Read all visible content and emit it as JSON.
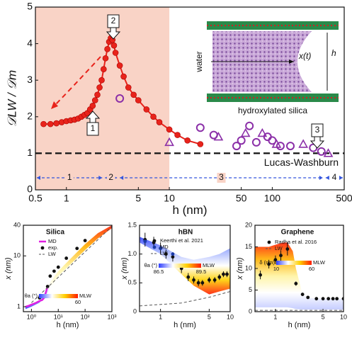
{
  "chart_data": [
    {
      "type": "line",
      "x_label": "h (nm)",
      "y_label": "𝒟LW / 𝒟m",
      "xlog": true,
      "xlim": [
        0.5,
        500
      ],
      "xticks": [
        0.5,
        1,
        5,
        10,
        50,
        100,
        500
      ],
      "ylim": [
        0,
        5
      ],
      "yticks": [
        0,
        1,
        2,
        3,
        4,
        5
      ],
      "shaded": [
        0.5,
        10
      ],
      "shade_color": "#f9d3c6",
      "reference": {
        "value": 1,
        "label": "Lucas-Washburn"
      },
      "series": [
        {
          "style": "line-markers",
          "color": "#e8231b",
          "x": [
            0.6,
            0.7,
            0.8,
            0.9,
            1.0,
            1.1,
            1.2,
            1.3,
            1.4,
            1.5,
            1.6,
            1.7,
            1.8,
            1.9,
            2.0,
            2.1,
            2.2,
            2.3,
            2.4,
            2.5,
            2.6,
            2.7,
            2.8,
            2.9,
            3.0,
            3.3,
            3.6,
            4,
            4.5,
            5,
            6,
            7,
            8,
            10,
            12,
            15,
            20
          ],
          "values": [
            1.8,
            1.8,
            1.82,
            1.85,
            1.88,
            1.9,
            1.92,
            1.95,
            2.0,
            2.05,
            2.1,
            2.2,
            2.3,
            2.45,
            2.6,
            2.8,
            3.0,
            3.3,
            3.6,
            3.85,
            4.05,
            4.15,
            4.1,
            3.95,
            3.75,
            3.4,
            3.1,
            2.8,
            2.6,
            2.45,
            2.2,
            2.0,
            1.85,
            1.65,
            1.5,
            1.35,
            1.25
          ]
        },
        {
          "style": "scatter",
          "color": "#8b2fa8",
          "x": [
            3.3,
            10,
            20,
            27,
            30,
            45,
            50,
            55,
            60,
            70,
            80,
            90,
            100,
            110,
            120,
            150,
            200,
            250,
            300,
            350
          ],
          "values": [
            2.5,
            1.3,
            1.7,
            1.5,
            1.45,
            1.2,
            1.35,
            1.55,
            1.75,
            1.3,
            1.55,
            1.45,
            1.35,
            1.25,
            1.2,
            1.2,
            1.25,
            1.15,
            1.05,
            1.0
          ]
        }
      ],
      "regions": [
        {
          "label": "1",
          "range": [
            0.5,
            2.3
          ]
        },
        {
          "label": "2",
          "range": [
            2.3,
            3.2
          ]
        },
        {
          "label": "3",
          "range": [
            3.2,
            320
          ]
        },
        {
          "label": "4",
          "range": [
            320,
            500
          ]
        }
      ],
      "region_color": "#3355dd",
      "annotations": [
        "1",
        "2",
        "3"
      ],
      "inset": {
        "left": "water",
        "arrow": "x(t)",
        "height": "h",
        "bottom": "hydroxylated silica"
      }
    },
    {
      "type": "line",
      "title": "Silica",
      "x_label": "h (nm)",
      "y_label": "x (nm)",
      "xlog": true,
      "ylog": true,
      "xlim": [
        0.5,
        1000
      ],
      "xticks": [
        {
          "value": 1,
          "label": "10⁰"
        },
        {
          "value": 10,
          "label": "10¹"
        },
        {
          "value": 100,
          "label": "10²"
        },
        {
          "value": 1000,
          "label": "10³"
        }
      ],
      "ylim": [
        0.8,
        40
      ],
      "yticks": [
        1,
        10,
        40
      ],
      "band": {
        "x": [
          0.6,
          1,
          2,
          3,
          5,
          10,
          30,
          100,
          300,
          1000
        ],
        "upper": [
          1.0,
          1.1,
          1.3,
          1.8,
          3,
          5,
          9,
          17,
          28,
          40
        ],
        "lower": [
          0.9,
          1.0,
          1.2,
          1.5,
          2.3,
          4,
          7,
          13,
          22,
          35
        ],
        "colors": [
          "#ff1a00",
          "#ffb000",
          "#fff3a0",
          "#ffffff",
          "#3040ff"
        ]
      },
      "series": [
        {
          "name": "MD",
          "style": "line",
          "color": "#e020e0",
          "x": [
            0.6,
            0.8,
            1,
            1.5,
            2,
            2.5,
            3,
            4
          ],
          "values": [
            1.0,
            1.05,
            1.1,
            1.2,
            1.3,
            1.35,
            1.5,
            2.5
          ]
        },
        {
          "name": "exp.",
          "style": "points",
          "color": "#111111",
          "x": [
            2,
            3,
            4,
            5,
            7,
            10,
            20,
            50,
            100
          ],
          "values": [
            1.5,
            1.6,
            2.5,
            4,
            5,
            6,
            9,
            14,
            20
          ]
        },
        {
          "name": "LW",
          "style": "dashed",
          "color": "#555555",
          "x": [
            1,
            1000
          ],
          "values": [
            1.2,
            38
          ]
        }
      ],
      "colorbar": {
        "title": "θa (°)",
        "label": "MLW",
        "ticks": [
          60
        ],
        "colors": [
          "#3040ff",
          "#ffffff",
          "#ffd000",
          "#ff1a00"
        ]
      }
    },
    {
      "type": "line",
      "title": "hBN",
      "x_label": "h (nm)",
      "y_label": "x (nm)",
      "xlog": true,
      "xlim": [
        0.5,
        10
      ],
      "xticks": [
        1,
        5,
        10
      ],
      "ylim": [
        0,
        1.5
      ],
      "yticks": [
        0,
        {
          "value": 0.5,
          "label": "0.5"
        },
        {
          "value": 1,
          "label": "1.0"
        },
        {
          "value": 1.5,
          "label": "1.5"
        }
      ],
      "band": {
        "x": [
          0.5,
          1,
          2,
          3,
          5,
          7,
          10
        ],
        "upper": [
          1.3,
          1.15,
          0.95,
          0.9,
          0.95,
          1.0,
          1.1
        ],
        "lower": [
          1.2,
          1.0,
          0.65,
          0.45,
          0.3,
          0.35,
          0.4
        ],
        "colors": [
          "#3040ff",
          "#a0b0ff",
          "#ffffff",
          "#ffd000",
          "#ff1a00"
        ]
      },
      "series": [
        {
          "name": "Keerthi et al. 2021",
          "style": "points",
          "color": "#111111",
          "x": [
            0.6,
            0.8,
            1.0,
            1.2,
            1.5,
            2,
            2.5,
            3,
            3.5,
            4,
            5,
            6,
            7,
            8,
            9
          ],
          "values": [
            1.25,
            1.2,
            1.1,
            1.0,
            0.95,
            0.75,
            0.6,
            0.55,
            0.5,
            0.5,
            0.55,
            0.55,
            0.6,
            0.65,
            0.65
          ],
          "errors": [
            0.12,
            0.1,
            0.1,
            0.08,
            0.08,
            0.08,
            0.07,
            0.06,
            0.06,
            0.05,
            0.05,
            0.05,
            0.05,
            0.05,
            0.05
          ]
        },
        {
          "name": "MD",
          "style": "points",
          "color": "#1a3aa8",
          "x": [
            0.6,
            1,
            1.5
          ],
          "values": [
            1.22,
            1.1,
            1.0
          ]
        },
        {
          "name": "LW",
          "style": "dashed",
          "color": "#555555",
          "x": [
            0.5,
            2,
            5,
            10
          ],
          "values": [
            0.1,
            0.15,
            0.25,
            0.35
          ]
        }
      ],
      "colorbar": {
        "title": "θa (°)",
        "label": "MLW",
        "ticks": [
          86.5,
          89.5
        ],
        "colors": [
          "#3040ff",
          "#ffffff",
          "#ffd000",
          "#ff1a00"
        ]
      }
    },
    {
      "type": "line",
      "title": "Graphene",
      "x_label": "h (nm)",
      "y_label": "x (nm)",
      "xlog": true,
      "xlim": [
        0.5,
        10
      ],
      "xticks": [
        1,
        5,
        10
      ],
      "ylim": [
        0,
        20
      ],
      "yticks": [
        0,
        5,
        10,
        15,
        20
      ],
      "band": {
        "x": [
          0.5,
          0.8,
          1,
          1.3,
          1.5,
          1.8,
          2,
          2.5,
          3,
          5,
          10
        ],
        "upper": [
          15,
          15,
          15.5,
          16,
          16,
          14,
          10,
          4,
          3.2,
          3,
          3
        ],
        "lower": [
          1,
          1,
          1,
          1,
          1,
          0.8,
          0.6,
          0.5,
          0.5,
          0.5,
          0.5
        ],
        "colors": [
          "#ff1a00",
          "#ffb000",
          "#fff3a0",
          "#ffffff",
          "#c0c8ff"
        ]
      },
      "series": [
        {
          "name": "Radha et al. 2016",
          "style": "points",
          "color": "#111111",
          "x": [
            0.6,
            0.8,
            1.0,
            1.2,
            1.5,
            2,
            2.5,
            3,
            4,
            5,
            6,
            7,
            8,
            10
          ],
          "values": [
            8.5,
            11,
            12,
            13,
            14.5,
            6.5,
            4,
            3.3,
            3,
            3,
            3,
            3,
            3,
            3
          ],
          "errors": [
            1,
            1,
            1,
            1.2,
            1.5,
            0.5,
            0.4,
            0.3,
            0.3,
            0.3,
            0.3,
            0.3,
            0.3,
            0.3
          ]
        },
        {
          "name": "LW",
          "style": "dashed",
          "color": "#555555",
          "x": [
            0.5,
            10
          ],
          "values": [
            0.3,
            0.3
          ]
        }
      ],
      "colorbar": {
        "title": "δ (nm)",
        "label": "MLW",
        "ticks": [
          10,
          60
        ],
        "colors": [
          "#3040ff",
          "#ffffff",
          "#ffd000",
          "#ff1a00"
        ]
      }
    }
  ]
}
